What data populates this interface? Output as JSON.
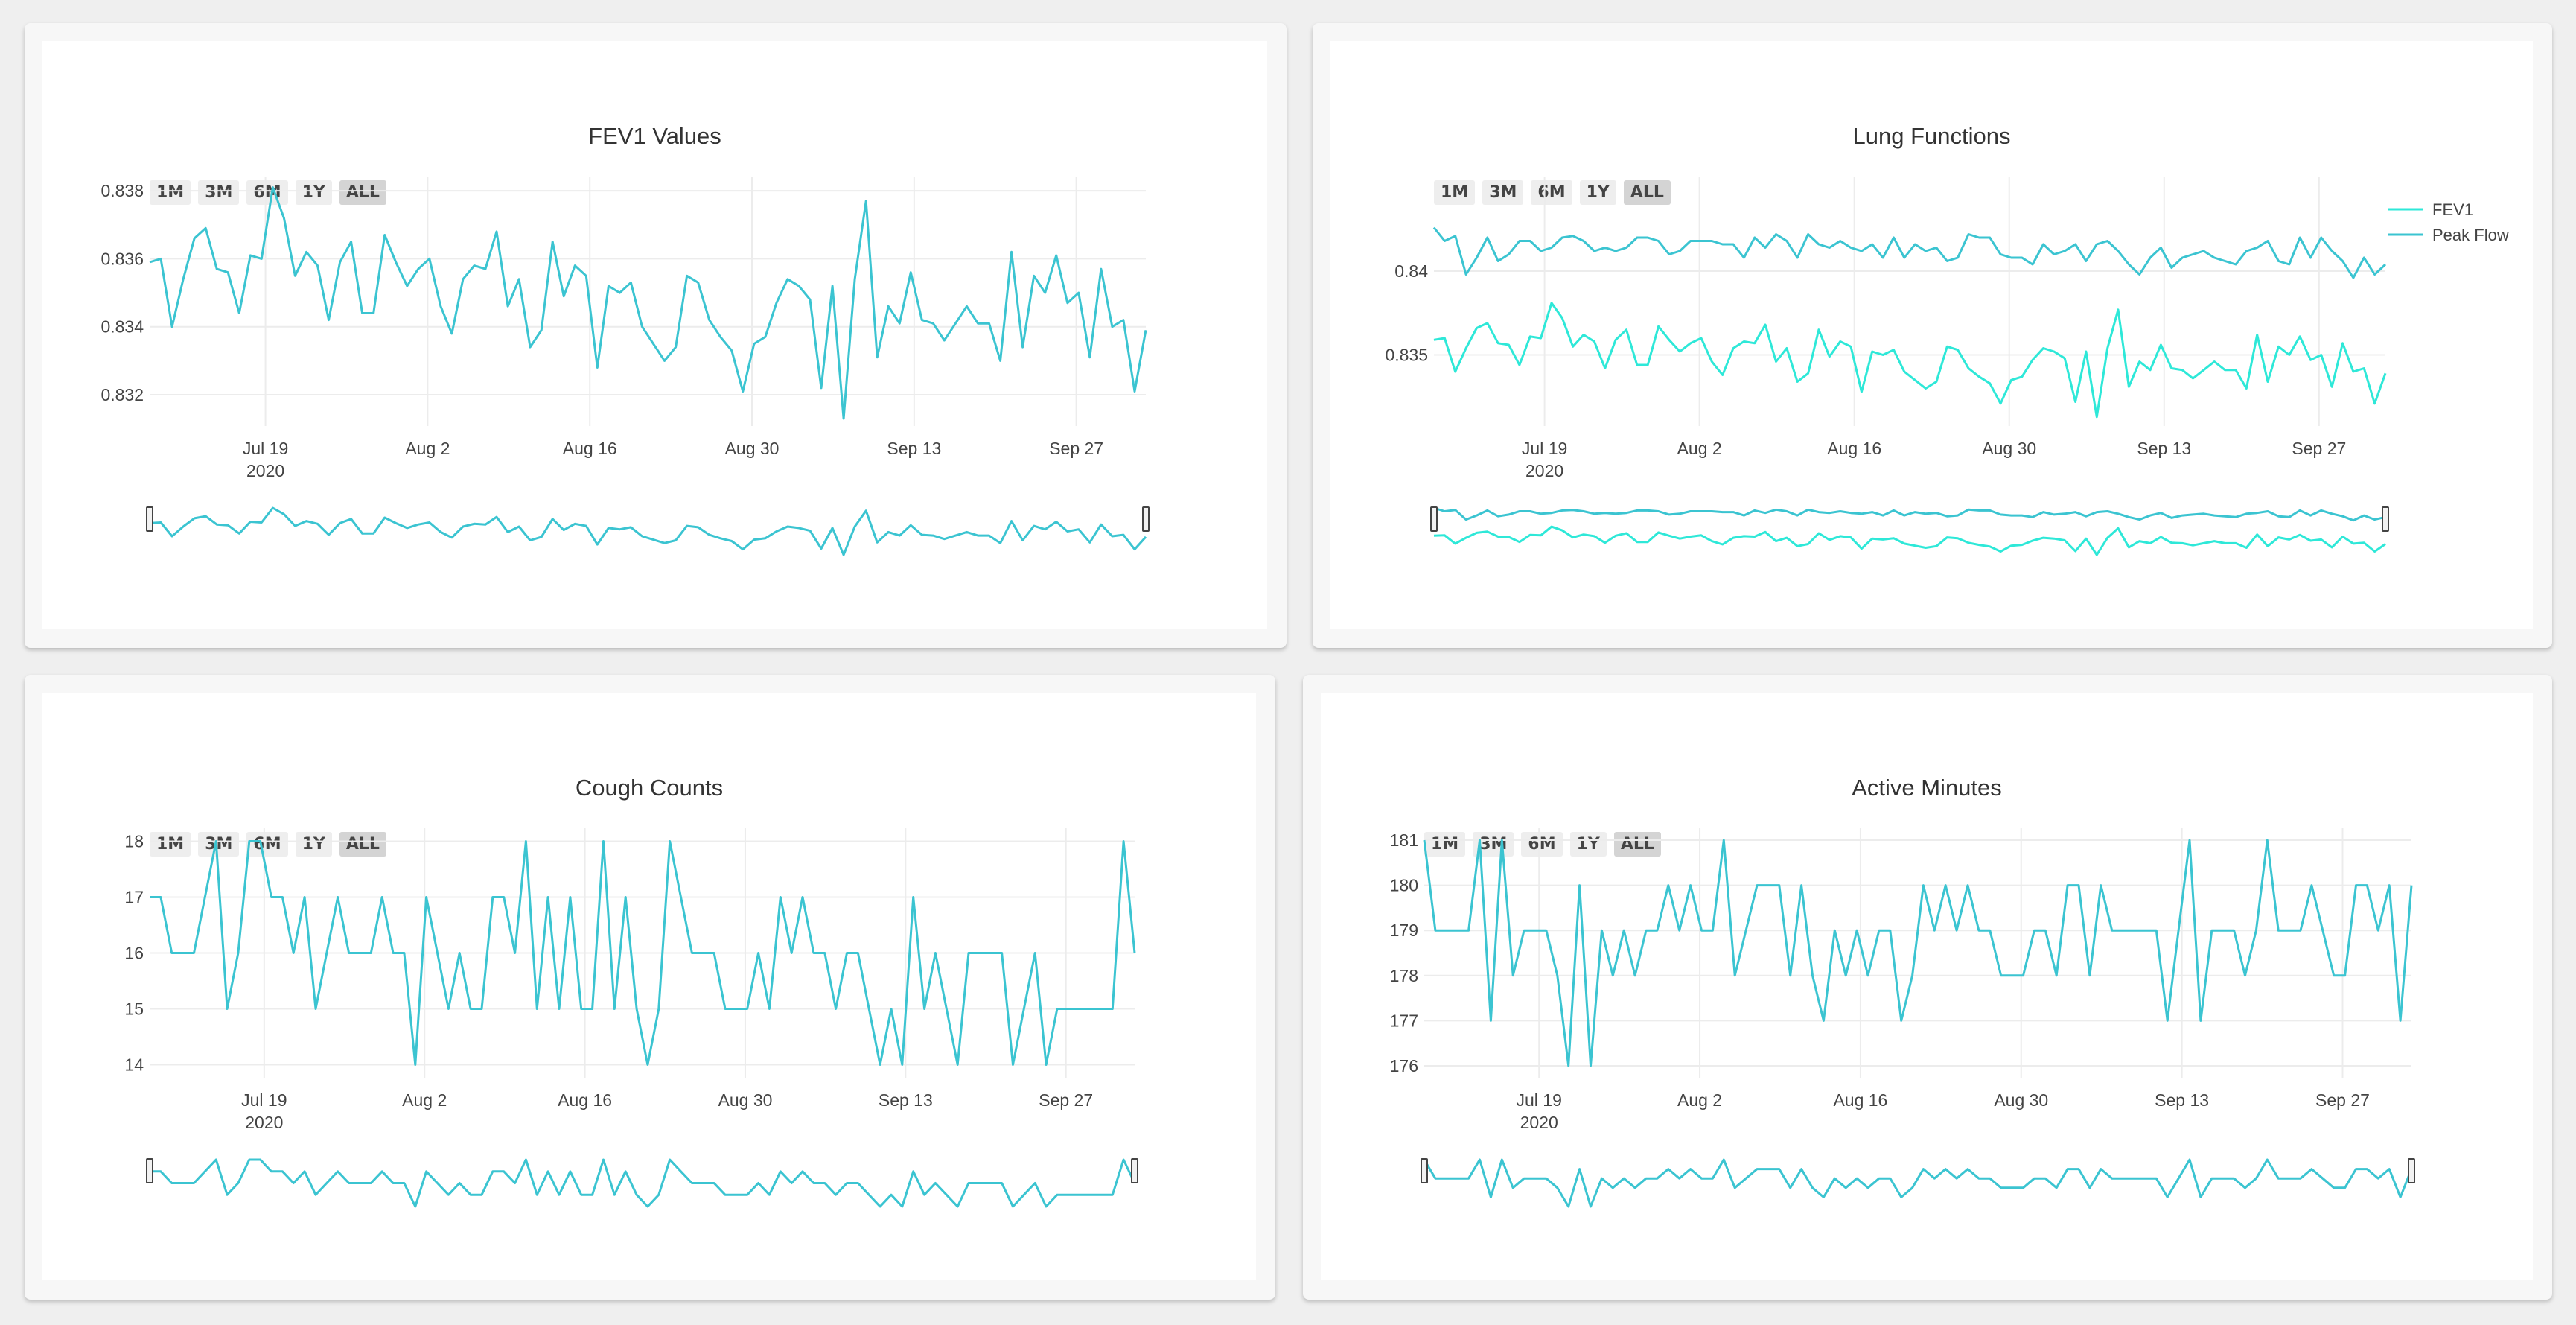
{
  "range_buttons": [
    "1M",
    "3M",
    "6M",
    "1Y",
    "ALL"
  ],
  "active_range": "ALL",
  "year_label": "2020",
  "charts": [
    {
      "title": "FEV1 Values",
      "legend": [],
      "chart_data": {
        "type": "line",
        "x_start": "2020-07-09",
        "x_end": "2020-10-03",
        "x_ticks": [
          "Jul 19",
          "Aug 2",
          "Aug 16",
          "Aug 30",
          "Sep 13",
          "Sep 27"
        ],
        "x_tick_dates": [
          "2020-07-19",
          "2020-08-02",
          "2020-08-16",
          "2020-08-30",
          "2020-09-13",
          "2020-09-27"
        ],
        "ylim": [
          0.8313,
          0.8382
        ],
        "y_ticks": [
          0.832,
          0.834,
          0.836,
          0.838
        ],
        "y_tick_labels": [
          "0.832",
          "0.834",
          "0.836",
          "0.838"
        ],
        "series": [
          {
            "color": "#3bc4d1",
            "values": [
              0.8359,
              0.836,
              0.834,
              0.8354,
              0.8366,
              0.8369,
              0.8357,
              0.8356,
              0.8344,
              0.8361,
              0.836,
              0.8381,
              0.8372,
              0.8355,
              0.8362,
              0.8358,
              0.8342,
              0.8359,
              0.8365,
              0.8344,
              0.8344,
              0.8367,
              0.8359,
              0.8352,
              0.8357,
              0.836,
              0.8346,
              0.8338,
              0.8354,
              0.8358,
              0.8357,
              0.8368,
              0.8346,
              0.8354,
              0.8334,
              0.8339,
              0.8365,
              0.8349,
              0.8358,
              0.8355,
              0.8328,
              0.8352,
              0.835,
              0.8353,
              0.834,
              0.8335,
              0.833,
              0.8334,
              0.8355,
              0.8353,
              0.8342,
              0.8337,
              0.8333,
              0.8321,
              0.8335,
              0.8337,
              0.8347,
              0.8354,
              0.8352,
              0.8348,
              0.8322,
              0.8352,
              0.8313,
              0.8354,
              0.8377,
              0.8331,
              0.8346,
              0.8341,
              0.8356,
              0.8342,
              0.8341,
              0.8336,
              0.8341,
              0.8346,
              0.8341,
              0.8341,
              0.833,
              0.8362,
              0.8334,
              0.8355,
              0.835,
              0.8361,
              0.8347,
              0.835,
              0.8331,
              0.8357,
              0.834,
              0.8342,
              0.8321,
              0.8339
            ]
          }
        ]
      }
    },
    {
      "title": "Lung Functions",
      "legend": [
        {
          "name": "FEV1",
          "color": "#2ee8d8"
        },
        {
          "name": "Peak Flow",
          "color": "#3bc4d1"
        }
      ],
      "chart_data": {
        "type": "line",
        "x_start": "2020-07-09",
        "x_end": "2020-10-03",
        "x_ticks": [
          "Jul 19",
          "Aug 2",
          "Aug 16",
          "Aug 30",
          "Sep 13",
          "Sep 27"
        ],
        "x_tick_dates": [
          "2020-07-19",
          "2020-08-02",
          "2020-08-16",
          "2020-08-30",
          "2020-09-13",
          "2020-09-27"
        ],
        "ylim": [
          0.8312,
          0.8452
        ],
        "y_ticks": [
          0.835,
          0.84
        ],
        "y_tick_labels": [
          "0.835",
          "0.84"
        ],
        "series": [
          {
            "name": "FEV1",
            "color": "#2ee8d8",
            "values": [
              0.8359,
              0.836,
              0.834,
              0.8354,
              0.8366,
              0.8369,
              0.8357,
              0.8356,
              0.8344,
              0.8361,
              0.836,
              0.8381,
              0.8372,
              0.8355,
              0.8362,
              0.8358,
              0.8342,
              0.8359,
              0.8365,
              0.8344,
              0.8344,
              0.8367,
              0.8359,
              0.8352,
              0.8357,
              0.836,
              0.8346,
              0.8338,
              0.8354,
              0.8358,
              0.8357,
              0.8368,
              0.8346,
              0.8354,
              0.8334,
              0.8339,
              0.8365,
              0.8349,
              0.8358,
              0.8355,
              0.8328,
              0.8352,
              0.835,
              0.8353,
              0.834,
              0.8335,
              0.833,
              0.8334,
              0.8355,
              0.8353,
              0.8342,
              0.8337,
              0.8333,
              0.8321,
              0.8335,
              0.8337,
              0.8347,
              0.8354,
              0.8352,
              0.8348,
              0.8322,
              0.8352,
              0.8313,
              0.8354,
              0.8377,
              0.8331,
              0.8346,
              0.8341,
              0.8356,
              0.8342,
              0.8341,
              0.8336,
              0.8341,
              0.8346,
              0.8341,
              0.8341,
              0.833,
              0.8362,
              0.8334,
              0.8355,
              0.835,
              0.8361,
              0.8347,
              0.835,
              0.8331,
              0.8357,
              0.834,
              0.8342,
              0.8321,
              0.8339
            ]
          },
          {
            "name": "Peak Flow",
            "color": "#3bc4d1",
            "values": [
              0.8426,
              0.8418,
              0.8421,
              0.8398,
              0.8408,
              0.842,
              0.8406,
              0.841,
              0.8418,
              0.8418,
              0.8412,
              0.8414,
              0.842,
              0.8421,
              0.8418,
              0.8412,
              0.8414,
              0.8412,
              0.8414,
              0.842,
              0.842,
              0.8418,
              0.841,
              0.8412,
              0.8418,
              0.8418,
              0.8418,
              0.8416,
              0.8416,
              0.8408,
              0.842,
              0.8414,
              0.8422,
              0.8418,
              0.8408,
              0.8422,
              0.8416,
              0.8414,
              0.8418,
              0.8414,
              0.8412,
              0.8416,
              0.8408,
              0.842,
              0.8408,
              0.8416,
              0.8412,
              0.8414,
              0.8406,
              0.8408,
              0.8422,
              0.842,
              0.842,
              0.841,
              0.8408,
              0.8408,
              0.8404,
              0.8416,
              0.841,
              0.8412,
              0.8416,
              0.8406,
              0.8416,
              0.8418,
              0.8412,
              0.8404,
              0.8398,
              0.8408,
              0.8414,
              0.8402,
              0.8408,
              0.841,
              0.8412,
              0.8408,
              0.8406,
              0.8404,
              0.8412,
              0.8414,
              0.8418,
              0.8406,
              0.8404,
              0.842,
              0.8408,
              0.842,
              0.8412,
              0.8406,
              0.8396,
              0.8408,
              0.8398,
              0.8404
            ]
          }
        ]
      }
    },
    {
      "title": "Cough Counts",
      "legend": [],
      "chart_data": {
        "type": "line",
        "x_start": "2020-07-09",
        "x_end": "2020-10-03",
        "x_ticks": [
          "Jul 19",
          "Aug 2",
          "Aug 16",
          "Aug 30",
          "Sep 13",
          "Sep 27"
        ],
        "x_tick_dates": [
          "2020-07-19",
          "2020-08-02",
          "2020-08-16",
          "2020-08-30",
          "2020-09-13",
          "2020-09-27"
        ],
        "ylim": [
          13.9,
          18.1
        ],
        "y_ticks": [
          14,
          15,
          16,
          17,
          18
        ],
        "y_tick_labels": [
          "14",
          "15",
          "16",
          "17",
          "18"
        ],
        "series": [
          {
            "color": "#3bc4d1",
            "values": [
              17,
              17,
              16,
              16,
              16,
              17,
              18,
              15,
              16,
              18,
              18,
              17,
              17,
              16,
              17,
              15,
              16,
              17,
              16,
              16,
              16,
              17,
              16,
              16,
              14,
              17,
              16,
              15,
              16,
              15,
              15,
              17,
              17,
              16,
              18,
              15,
              17,
              15,
              17,
              15,
              15,
              18,
              15,
              17,
              15,
              14,
              15,
              18,
              17,
              16,
              16,
              16,
              15,
              15,
              15,
              16,
              15,
              17,
              16,
              17,
              16,
              16,
              15,
              16,
              16,
              15,
              14,
              15,
              14,
              17,
              15,
              16,
              15,
              14,
              16,
              16,
              16,
              16,
              14,
              15,
              16,
              14,
              15,
              15,
              15,
              15,
              15,
              15,
              18,
              16
            ]
          }
        ]
      }
    },
    {
      "title": "Active Minutes",
      "legend": [],
      "chart_data": {
        "type": "line",
        "x_start": "2020-07-09",
        "x_end": "2020-10-03",
        "x_ticks": [
          "Jul 19",
          "Aug 2",
          "Aug 16",
          "Aug 30",
          "Sep 13",
          "Sep 27"
        ],
        "x_tick_dates": [
          "2020-07-19",
          "2020-08-02",
          "2020-08-16",
          "2020-08-30",
          "2020-09-13",
          "2020-09-27"
        ],
        "ylim": [
          175.9,
          181.1
        ],
        "y_ticks": [
          176,
          177,
          178,
          179,
          180,
          181
        ],
        "y_tick_labels": [
          "176",
          "177",
          "178",
          "179",
          "180",
          "181"
        ],
        "series": [
          {
            "color": "#3bc4d1",
            "values": [
              181,
              179,
              179,
              179,
              179,
              181,
              177,
              181,
              178,
              179,
              179,
              179,
              178,
              176,
              180,
              176,
              179,
              178,
              179,
              178,
              179,
              179,
              180,
              179,
              180,
              179,
              179,
              181,
              178,
              179,
              180,
              180,
              180,
              178,
              180,
              178,
              177,
              179,
              178,
              179,
              178,
              179,
              179,
              177,
              178,
              180,
              179,
              180,
              179,
              180,
              179,
              179,
              178,
              178,
              178,
              179,
              179,
              178,
              180,
              180,
              178,
              180,
              179,
              179,
              179,
              179,
              179,
              177,
              179,
              181,
              177,
              179,
              179,
              179,
              178,
              179,
              181,
              179,
              179,
              179,
              180,
              179,
              178,
              178,
              180,
              180,
              179,
              180,
              177,
              180
            ]
          }
        ]
      }
    }
  ]
}
